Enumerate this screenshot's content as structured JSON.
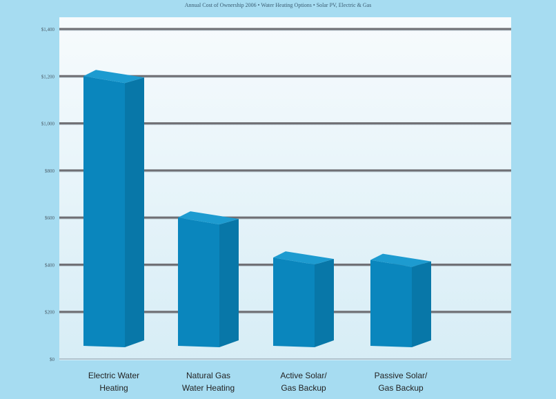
{
  "chart_data": {
    "type": "bar",
    "title": "Annual Cost of Ownership 2006 • Water Heating Options • Solar PV, Electric & Gas",
    "categories": [
      [
        "Electric Water",
        "Heating"
      ],
      [
        "Natural Gas",
        "Water Heating"
      ],
      [
        "Active Solar/",
        "Gas Backup"
      ],
      [
        "Passive Solar/",
        "Gas Backup"
      ]
    ],
    "values": [
      1200,
      600,
      430,
      420
    ],
    "yticks": [
      {
        "value": 0,
        "label": "$0"
      },
      {
        "value": 200,
        "label": "$200"
      },
      {
        "value": 400,
        "label": "$400"
      },
      {
        "value": 600,
        "label": "$600"
      },
      {
        "value": 800,
        "label": "$800"
      },
      {
        "value": 1000,
        "label": "$1,000"
      },
      {
        "value": 1200,
        "label": "$1,200"
      },
      {
        "value": 1400,
        "label": "$1,400"
      }
    ],
    "ylim": [
      0,
      1400
    ],
    "grid": true,
    "colors": {
      "bar_front": "#0a86bd",
      "bar_side": "#0877a8",
      "bar_top": "#1d9bd0",
      "gridline": "#6f6f74",
      "plot_bg_top": "#f7fbfd",
      "plot_bg_bottom": "#d7edf6"
    }
  }
}
